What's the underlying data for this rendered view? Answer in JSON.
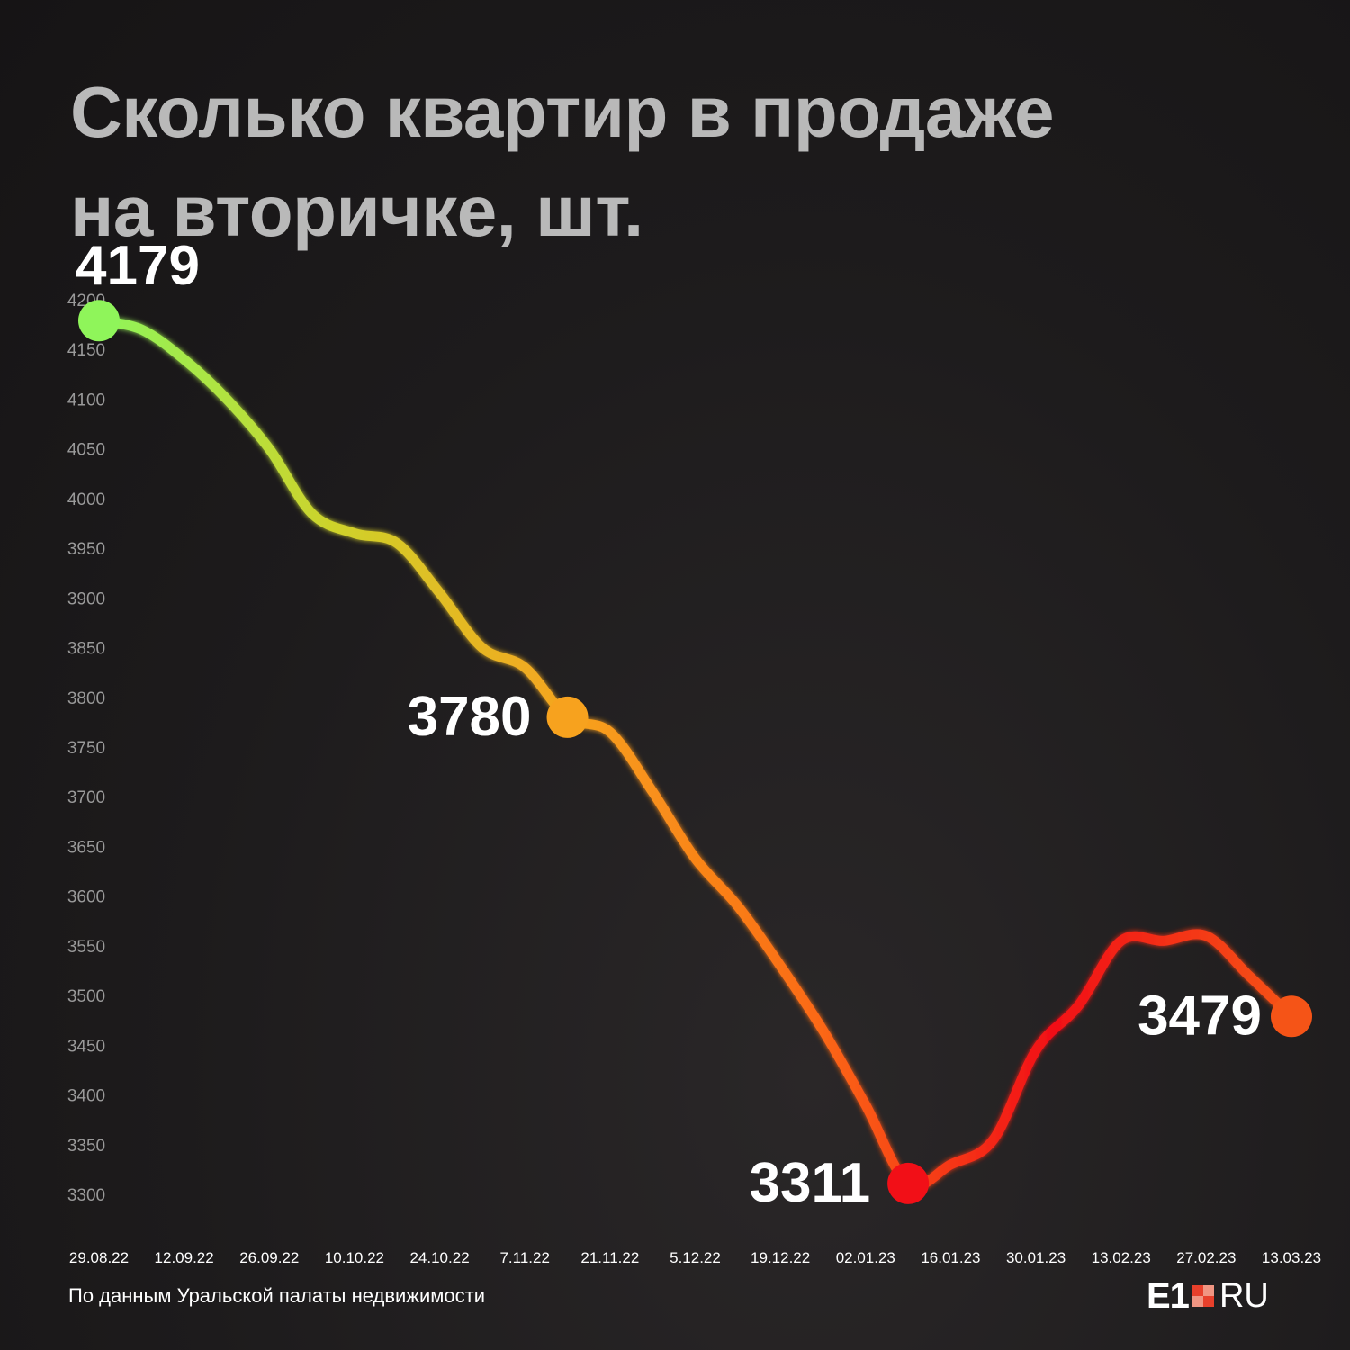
{
  "title_lines": [
    "Сколько квартир в продаже",
    "на вторичке, шт."
  ],
  "source": "По данным Уральской палаты недвижимости",
  "logo": {
    "main": "E1",
    "suffix": "RU"
  },
  "chart_data": {
    "type": "line",
    "title": "Сколько квартир в продаже на вторичке, шт.",
    "x_tick_labels": [
      "29.08.22",
      "12.09.22",
      "26.09.22",
      "10.10.22",
      "24.10.22",
      "7.11.22",
      "21.11.22",
      "5.12.22",
      "19.12.22",
      "02.01.23",
      "16.01.23",
      "30.01.23",
      "13.02.23",
      "27.02.23",
      "13.03.23"
    ],
    "y_ticks": [
      4200,
      4150,
      4100,
      4050,
      4000,
      3950,
      3900,
      3850,
      3800,
      3750,
      3700,
      3650,
      3600,
      3550,
      3500,
      3450,
      3400,
      3350,
      3300
    ],
    "ylim": [
      3300,
      4200
    ],
    "grid": false,
    "points": [
      {
        "x": "29.08.22",
        "y": 4179
      },
      {
        "x": "05.09.22",
        "y": 4170
      },
      {
        "x": "12.09.22",
        "y": 4140
      },
      {
        "x": "19.09.22",
        "y": 4100
      },
      {
        "x": "26.09.22",
        "y": 4050
      },
      {
        "x": "03.10.22",
        "y": 3985
      },
      {
        "x": "10.10.22",
        "y": 3965
      },
      {
        "x": "17.10.22",
        "y": 3955
      },
      {
        "x": "24.10.22",
        "y": 3905
      },
      {
        "x": "31.10.22",
        "y": 3850
      },
      {
        "x": "07.11.22",
        "y": 3830
      },
      {
        "x": "14.11.22",
        "y": 3780
      },
      {
        "x": "21.11.22",
        "y": 3765
      },
      {
        "x": "28.11.22",
        "y": 3705
      },
      {
        "x": "05.12.22",
        "y": 3638
      },
      {
        "x": "12.12.22",
        "y": 3590
      },
      {
        "x": "19.12.22",
        "y": 3530
      },
      {
        "x": "26.12.22",
        "y": 3465
      },
      {
        "x": "02.01.23",
        "y": 3390
      },
      {
        "x": "09.01.23",
        "y": 3311
      },
      {
        "x": "16.01.23",
        "y": 3330
      },
      {
        "x": "23.01.23",
        "y": 3355
      },
      {
        "x": "30.01.23",
        "y": 3445
      },
      {
        "x": "06.02.23",
        "y": 3490
      },
      {
        "x": "13.02.23",
        "y": 3555
      },
      {
        "x": "20.02.23",
        "y": 3555
      },
      {
        "x": "27.02.23",
        "y": 3560
      },
      {
        "x": "06.03.23",
        "y": 3520
      },
      {
        "x": "13.03.23",
        "y": 3479
      }
    ],
    "highlights": [
      {
        "x": "29.08.22",
        "y": 4179,
        "label": "4179",
        "color": "#8ff55a"
      },
      {
        "x": "14.11.22",
        "y": 3780,
        "label": "3780",
        "color": "#f7a21e"
      },
      {
        "x": "09.01.23",
        "y": 3311,
        "label": "3311",
        "color": "#f20f17"
      },
      {
        "x": "13.03.23",
        "y": 3479,
        "label": "3479",
        "color": "#f55417"
      }
    ],
    "line_gradient": [
      "#8ff55a",
      "#cfd22a",
      "#f7a21e",
      "#fb6a14",
      "#f20f17",
      "#f55417"
    ],
    "colors": {
      "axis_text": "#9a9a9a",
      "tick_text": "#ffffff",
      "label_text": "#ffffff"
    }
  }
}
